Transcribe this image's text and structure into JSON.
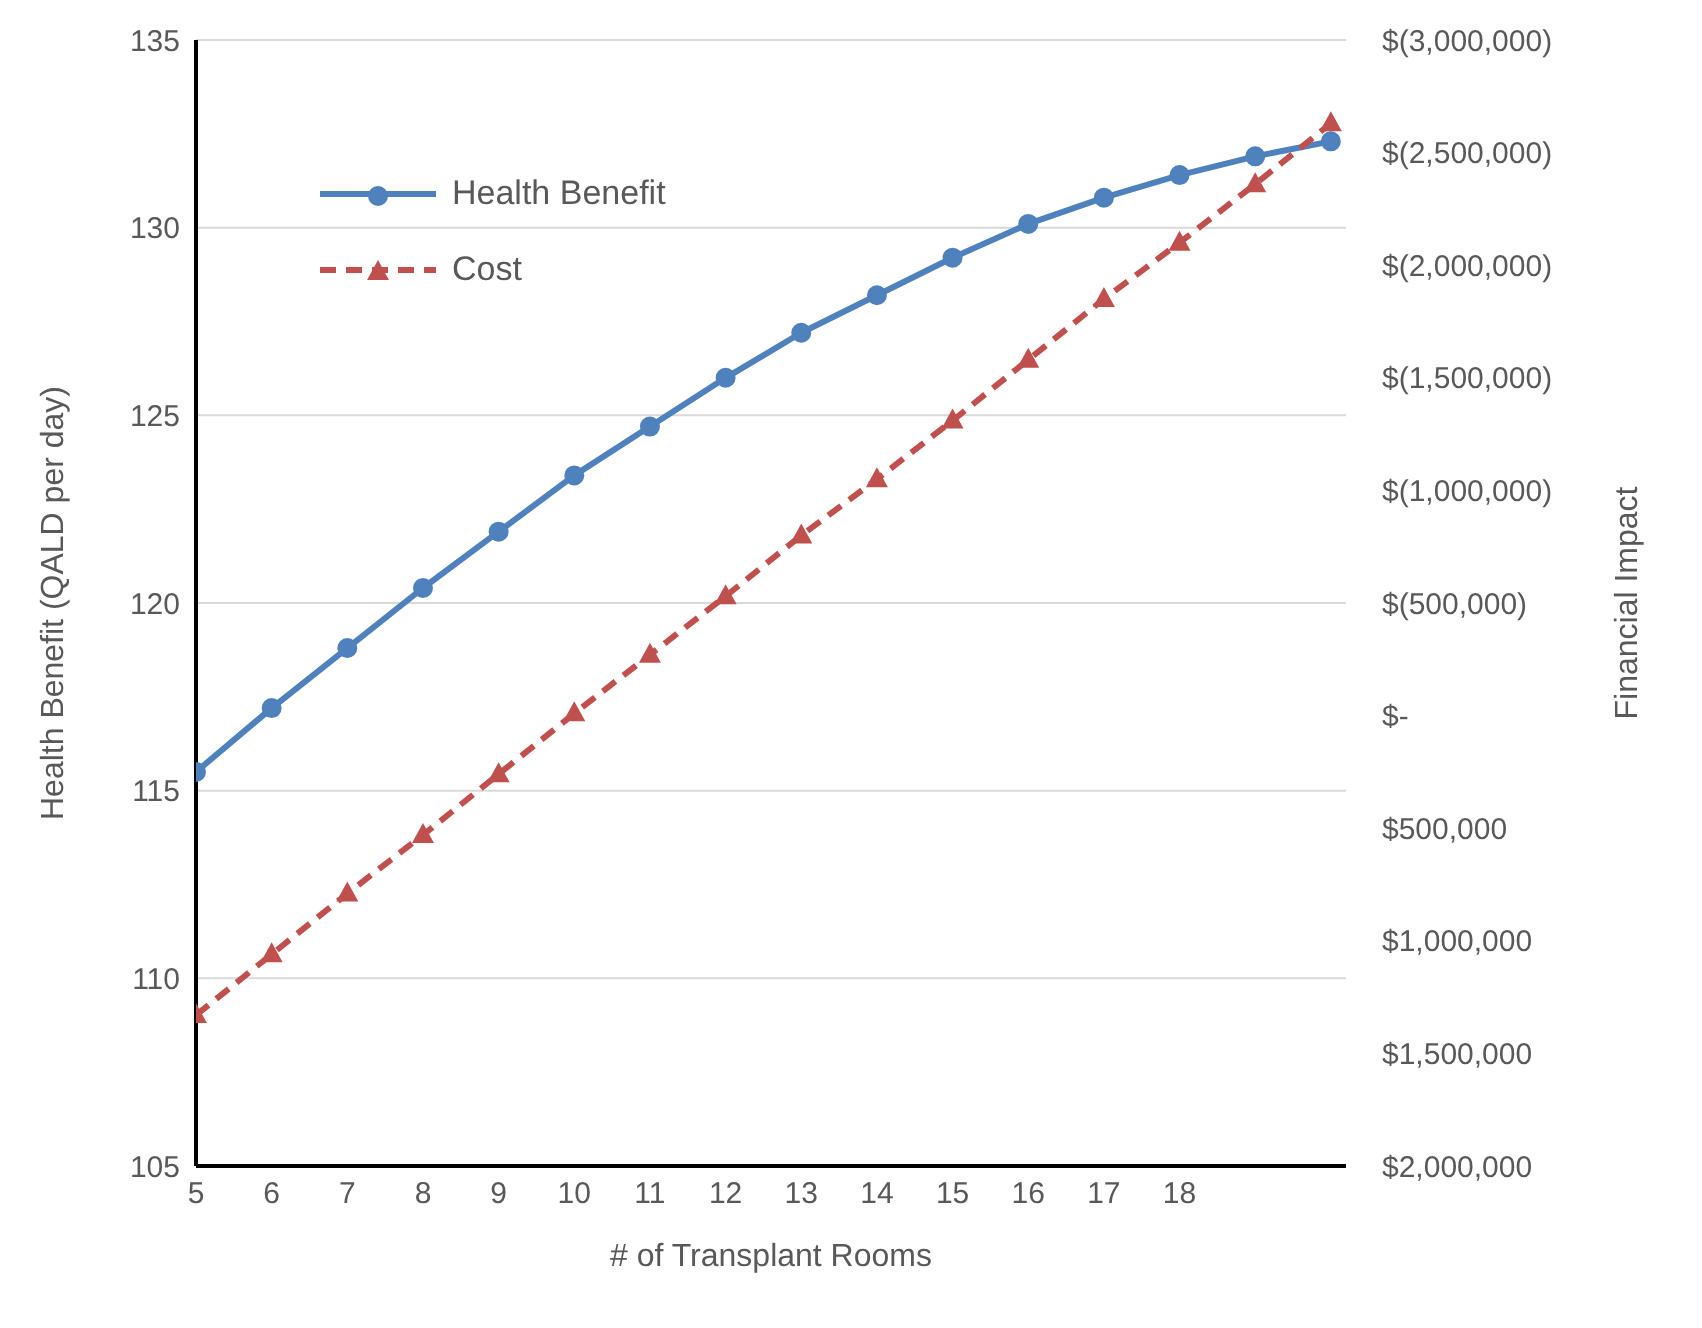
{
  "chart_data": {
    "type": "line",
    "xlabel": "# of Transplant Rooms",
    "ylabel": "Health Benefit (QALD per day)",
    "y2label": "Financial Impact",
    "x": [
      5,
      6,
      7,
      8,
      9,
      10,
      11,
      12,
      13,
      14,
      15,
      16,
      17,
      18,
      19,
      20
    ],
    "xlim": [
      5,
      20.2
    ],
    "xticks": [
      5,
      6,
      7,
      8,
      9,
      10,
      11,
      12,
      13,
      14,
      15,
      16,
      17,
      18
    ],
    "ylim": [
      105,
      135
    ],
    "yticks": [
      105,
      110,
      115,
      120,
      125,
      130,
      135
    ],
    "y2lim": [
      2000000,
      -3000000
    ],
    "y2ticks": [
      {
        "value": 2000000,
        "label": "$2,000,000"
      },
      {
        "value": 1500000,
        "label": "$1,500,000"
      },
      {
        "value": 1000000,
        "label": "$1,000,000"
      },
      {
        "value": 500000,
        "label": "$500,000"
      },
      {
        "value": 0,
        "label": "$-"
      },
      {
        "value": -500000,
        "label": "$(500,000)"
      },
      {
        "value": -1000000,
        "label": "$(1,000,000)"
      },
      {
        "value": -1500000,
        "label": "$(1,500,000)"
      },
      {
        "value": -2000000,
        "label": "$(2,000,000)"
      },
      {
        "value": -2500000,
        "label": "$(2,500,000)"
      },
      {
        "value": -3000000,
        "label": "$(3,000,000)"
      }
    ],
    "grid": "y",
    "legend": "top left",
    "series": [
      {
        "name": "Health Benefit",
        "color": "#4f81bd",
        "marker": "circle",
        "line_style": "solid",
        "values": [
          115.5,
          117.2,
          118.8,
          120.4,
          121.9,
          123.4,
          124.7,
          126.0,
          127.2,
          128.2,
          129.2,
          130.1,
          130.8,
          131.4,
          131.9,
          132.3
        ]
      },
      {
        "name": "Cost",
        "color": "#c0504d",
        "marker": "triangle",
        "line_style": "dashed",
        "axis": "y2",
        "values": [
          1330000,
          1060000,
          790000,
          530000,
          260000,
          -10000,
          -270000,
          -530000,
          -800000,
          -1050000,
          -1310000,
          -1580000,
          -1850000,
          -2100000,
          -2360000,
          -2630000
        ]
      }
    ]
  }
}
